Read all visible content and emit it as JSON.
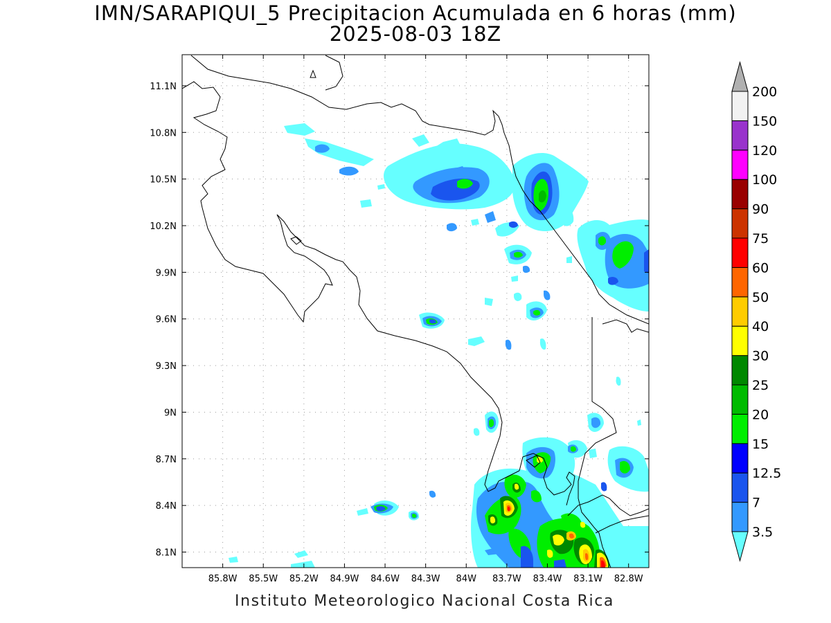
{
  "title": {
    "line1": "IMN/SARAPIQUI_5 Precipitacion Acumulada en 6 horas (mm)",
    "line2": "2025-08-03 18Z"
  },
  "footer": "Instituto Meteorologico Nacional Costa Rica",
  "map": {
    "lon_range": [
      -86.1,
      -82.65
    ],
    "lat_range": [
      8.0,
      11.3
    ],
    "x_ticks": [
      "85.8W",
      "85.5W",
      "85.2W",
      "84.9W",
      "84.6W",
      "84.3W",
      "84W",
      "83.7W",
      "83.4W",
      "83.1W",
      "82.8W"
    ],
    "x_tick_values": [
      -85.8,
      -85.5,
      -85.2,
      -84.9,
      -84.6,
      -84.3,
      -84.0,
      -83.7,
      -83.4,
      -83.1,
      -82.8
    ],
    "y_ticks": [
      "8.1N",
      "8.4N",
      "8.7N",
      "9N",
      "9.3N",
      "9.6N",
      "9.9N",
      "10.2N",
      "10.5N",
      "10.8N",
      "11.1N"
    ],
    "y_tick_values": [
      8.1,
      8.4,
      8.7,
      9.0,
      9.3,
      9.6,
      9.9,
      10.2,
      10.5,
      10.8,
      11.1
    ],
    "grid": "dotted"
  },
  "colorbar": {
    "levels": [
      "3.5",
      "7",
      "12.5",
      "15",
      "20",
      "25",
      "30",
      "40",
      "50",
      "60",
      "75",
      "90",
      "100",
      "120",
      "150",
      "200"
    ],
    "colors": [
      "#66ffff",
      "#3399ff",
      "#1a55ee",
      "#0000ff",
      "#00ee00",
      "#00bb00",
      "#008800",
      "#ffff00",
      "#ffcc00",
      "#ff6600",
      "#ff0000",
      "#cc3300",
      "#990000",
      "#ff00ff",
      "#9933cc",
      "#f2f2f2",
      "#b0b0b0"
    ]
  }
}
